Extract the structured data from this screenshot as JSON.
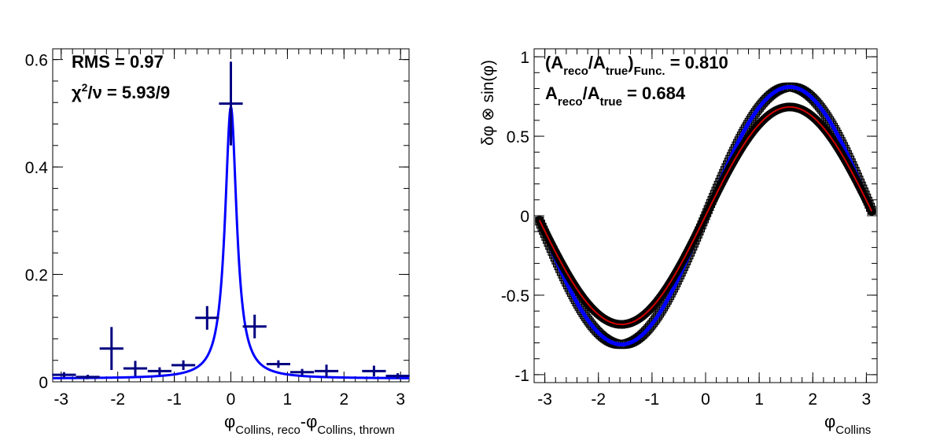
{
  "colors": {
    "fit": "#0000ff",
    "points": "#000080",
    "mc": "#d00000",
    "data": "#000000",
    "frame": "#000000"
  },
  "chart_data": [
    {
      "type": "scatter",
      "xlim": [
        -3.15,
        3.15
      ],
      "ylim": [
        0,
        0.62
      ],
      "xticks": [
        "-3",
        "-2",
        "-1",
        "0",
        "1",
        "2",
        "3"
      ],
      "yticks": [
        "0",
        "0.2",
        "0.4",
        "0.6"
      ],
      "xlabel_main": "φ",
      "xlabel_sub1": "Collins, reco",
      "xlabel_mid": "-φ",
      "xlabel_sub2": "Collins, thrown",
      "ylabel": "",
      "annotations": {
        "rms": "RMS = 0.97",
        "chi_prefix": "χ",
        "chi_sup": "2",
        "chi_rest": "/ν = 5.93/9"
      },
      "points": {
        "x": [
          -2.95,
          -2.53,
          -2.11,
          -1.69,
          -1.26,
          -0.84,
          -0.42,
          0.0,
          0.42,
          0.84,
          1.26,
          1.69,
          2.53,
          2.95
        ],
        "y": [
          0.013,
          0.009,
          0.062,
          0.025,
          0.02,
          0.031,
          0.119,
          0.518,
          0.103,
          0.033,
          0.018,
          0.02,
          0.02,
          0.011
        ],
        "yerr": [
          0.005,
          0.004,
          0.04,
          0.014,
          0.007,
          0.009,
          0.022,
          0.078,
          0.022,
          0.007,
          0.006,
          0.012,
          0.01,
          0.005
        ],
        "xerr": 0.21
      },
      "fit": {
        "peak": 0.512,
        "gamma": 0.125,
        "base": 0.006,
        "comment": ""
      }
    },
    {
      "type": "line",
      "xlim": [
        -3.2,
        3.2
      ],
      "ylim": [
        -1.05,
        1.05
      ],
      "xticks": [
        "-3",
        "-2",
        "-1",
        "0",
        "1",
        "2",
        "3"
      ],
      "yticks": [
        "-1",
        "-0.5",
        "0",
        "0.5",
        "1"
      ],
      "ylabel": "δφ ⊗ sin(φ)",
      "xlabel_main": "φ",
      "xlabel_sub": "Collins",
      "annotations": {
        "line1_a": "(A",
        "line1_reco": "reco",
        "line1_b": "/A",
        "line1_true": "true",
        "line1_c": ")",
        "line1_func": "Func.",
        "line1_val": " = 0.810",
        "line2_a": "A",
        "line2_reco": "reco",
        "line2_b": "/A",
        "line2_true": "true",
        "line2_val": " = 0.684"
      },
      "series": [
        {
          "amplitude": 0.81,
          "color": "blue"
        },
        {
          "amplitude": 0.684,
          "color": "black"
        },
        {
          "amplitude": 0.684,
          "color": "red"
        }
      ]
    }
  ]
}
